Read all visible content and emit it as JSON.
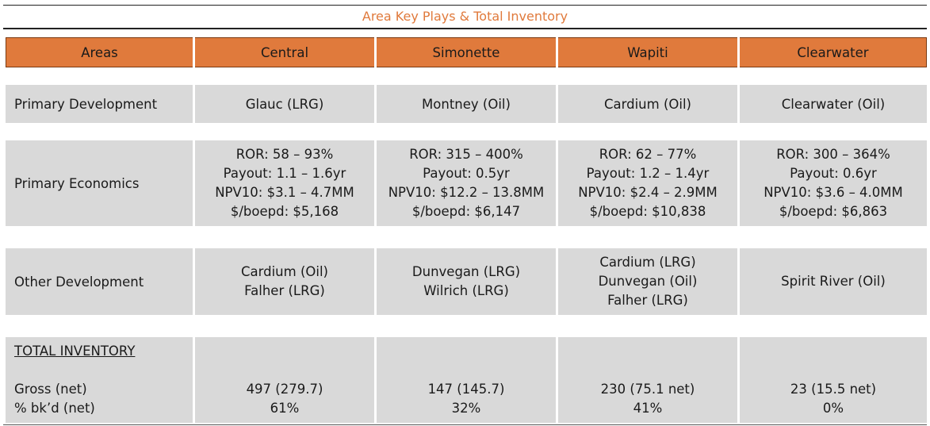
{
  "title": "Area Key Plays & Total Inventory",
  "accent_color": "#e07a3c",
  "headers": [
    "Areas",
    "Central",
    "Simonette",
    "Wapiti",
    "Clearwater"
  ],
  "primary_development": {
    "label": "Primary Development",
    "values": [
      "Glauc (LRG)",
      "Montney (Oil)",
      "Cardium (Oil)",
      "Clearwater (Oil)"
    ]
  },
  "primary_economics": {
    "label": "Primary Economics",
    "values": [
      [
        "ROR: 58 – 93%",
        "Payout: 1.1 – 1.6yr",
        "NPV10: $3.1 – 4.7MM",
        "$/boepd: $5,168"
      ],
      [
        "ROR: 315 – 400%",
        "Payout: 0.5yr",
        "NPV10: $12.2 – 13.8MM",
        "$/boepd: $6,147"
      ],
      [
        "ROR: 62 – 77%",
        "Payout: 1.2 – 1.4yr",
        "NPV10: $2.4 – 2.9MM",
        "$/boepd: $10,838"
      ],
      [
        "ROR: 300 – 364%",
        "Payout: 0.6yr",
        "NPV10: $3.6 – 4.0MM",
        "$/boepd: $6,863"
      ]
    ]
  },
  "other_development": {
    "label": "Other Development",
    "values": [
      [
        "Cardium (Oil)",
        "Falher (LRG)"
      ],
      [
        "Dunvegan (LRG)",
        "Wilrich (LRG)"
      ],
      [
        "Cardium (LRG)",
        "Dunvegan (Oil)",
        "Falher (LRG)"
      ],
      [
        "Spirit River (Oil)"
      ]
    ]
  },
  "total_inventory": {
    "heading": "TOTAL INVENTORY",
    "gross_label": "Gross (net)",
    "bkd_label": "% bk’d (net)",
    "gross": [
      "497 (279.7)",
      "147 (145.7)",
      "230 (75.1 net)",
      "23 (15.5 net)"
    ],
    "bkd": [
      "61%",
      "32%",
      "41%",
      "0%"
    ]
  }
}
